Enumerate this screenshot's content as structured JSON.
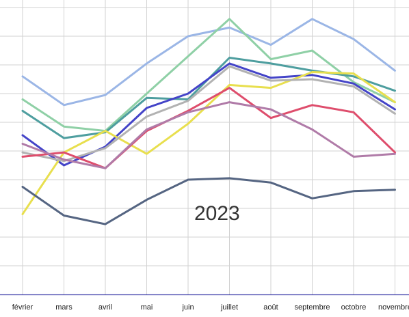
{
  "chart_data": {
    "type": "line",
    "categories": [
      "février",
      "mars",
      "avril",
      "mai",
      "juin",
      "juillet",
      "août",
      "septembre",
      "octobre",
      "novembre"
    ],
    "annotation": "2023",
    "grid": true,
    "series": [
      {
        "color": "#9bb6e6",
        "values": [
          7.6,
          6.6,
          6.95,
          8.05,
          9.0,
          9.3,
          8.7,
          9.6,
          8.9,
          7.8
        ]
      },
      {
        "color": "#8fd0a6",
        "values": [
          6.8,
          5.85,
          5.7,
          7.0,
          8.3,
          9.6,
          8.2,
          8.5,
          7.4,
          6.7
        ]
      },
      {
        "color": "#4e9e9f",
        "values": [
          6.4,
          5.45,
          5.65,
          6.85,
          6.8,
          8.25,
          8.05,
          7.8,
          7.6,
          7.1
        ]
      },
      {
        "color": "#4444c8",
        "values": [
          5.55,
          4.5,
          5.15,
          6.5,
          7.0,
          8.05,
          7.55,
          7.65,
          7.35,
          6.45
        ]
      },
      {
        "color": "#e8df4e",
        "values": [
          2.8,
          4.95,
          5.7,
          4.9,
          5.95,
          7.3,
          7.2,
          7.75,
          7.7,
          6.7
        ]
      },
      {
        "color": "#b2b2b2",
        "values": [
          4.95,
          4.65,
          5.1,
          6.2,
          6.75,
          7.95,
          7.45,
          7.5,
          7.25,
          6.3
        ]
      },
      {
        "color": "#de4d6c",
        "values": [
          4.8,
          4.95,
          4.4,
          5.7,
          6.4,
          7.2,
          6.15,
          6.6,
          6.35,
          4.95
        ]
      },
      {
        "color": "#b07ba8",
        "values": [
          5.25,
          4.7,
          4.4,
          5.75,
          6.35,
          6.7,
          6.45,
          5.75,
          4.8,
          4.9
        ]
      },
      {
        "color": "#556582",
        "values": [
          3.75,
          2.75,
          2.45,
          3.3,
          4.0,
          4.05,
          3.9,
          3.35,
          3.6,
          3.65
        ]
      }
    ]
  }
}
